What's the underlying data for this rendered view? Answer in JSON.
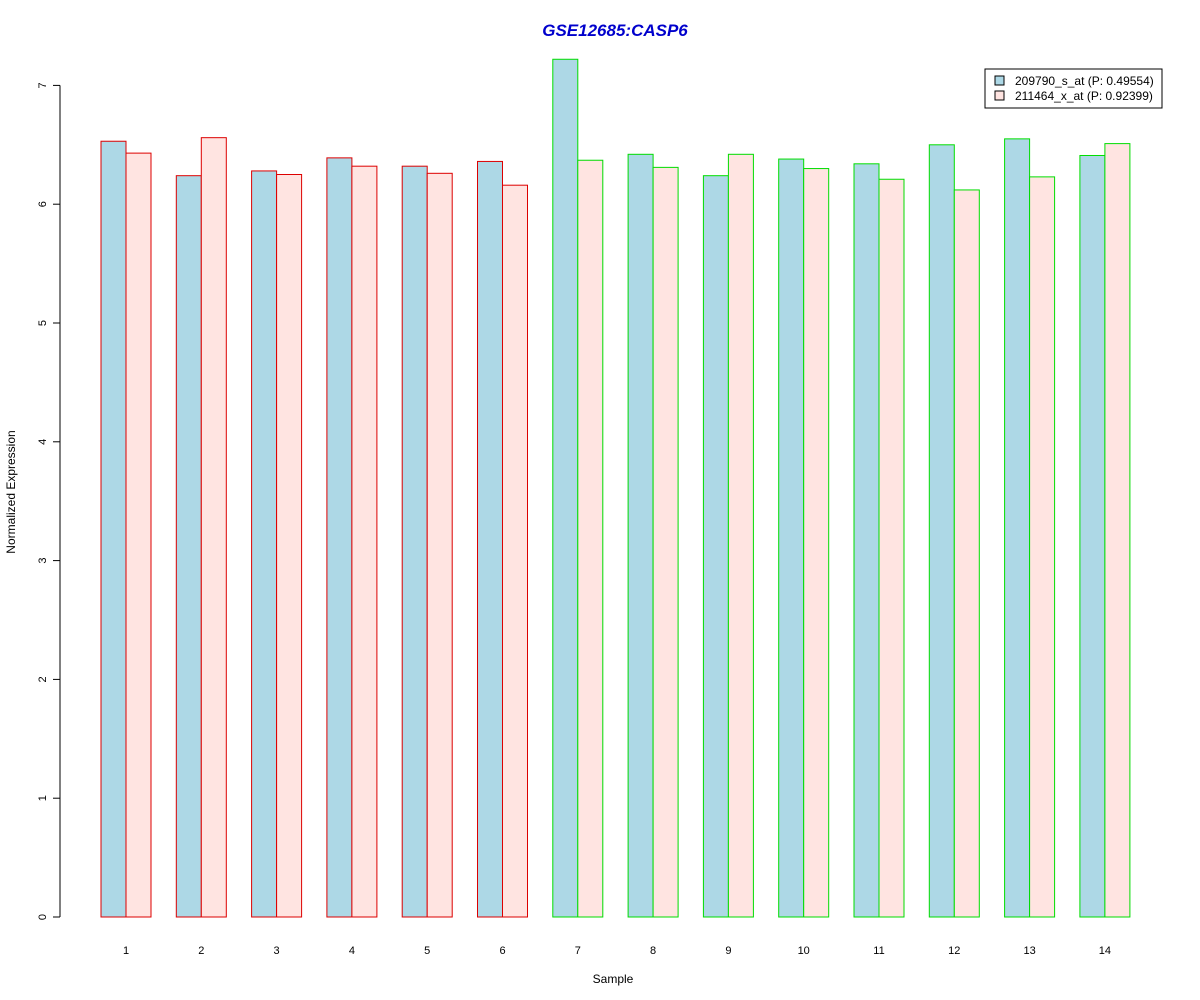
{
  "chart_data": {
    "type": "bar",
    "title": "GSE12685:CASP6",
    "title_color": "#0000cc",
    "xlabel": "Sample",
    "ylabel": "Normalized Expression",
    "ylim": [
      0,
      7
    ],
    "y_ticks": [
      "0",
      "1",
      "2",
      "3",
      "4",
      "5",
      "6",
      "7"
    ],
    "grid": false,
    "legend_position": "top-right",
    "categories": [
      "1",
      "2",
      "3",
      "4",
      "5",
      "6",
      "7",
      "8",
      "9",
      "10",
      "11",
      "12",
      "13",
      "14"
    ],
    "group_border_colors": [
      "#dd0000",
      "#dd0000",
      "#dd0000",
      "#dd0000",
      "#dd0000",
      "#dd0000",
      "#00dd00",
      "#00dd00",
      "#00dd00",
      "#00dd00",
      "#00dd00",
      "#00dd00",
      "#00dd00",
      "#00dd00"
    ],
    "series": [
      {
        "name": "209790_s_at (P: 0.49554)",
        "fill": "#add8e6",
        "values": [
          6.53,
          6.24,
          6.28,
          6.39,
          6.32,
          6.36,
          7.22,
          6.42,
          6.24,
          6.38,
          6.34,
          6.5,
          6.55,
          6.41
        ]
      },
      {
        "name": "211464_x_at (P: 0.92399)",
        "fill": "#ffe4e1",
        "values": [
          6.43,
          6.56,
          6.25,
          6.32,
          6.26,
          6.16,
          6.37,
          6.31,
          6.42,
          6.3,
          6.21,
          6.12,
          6.23,
          6.51
        ]
      }
    ]
  }
}
